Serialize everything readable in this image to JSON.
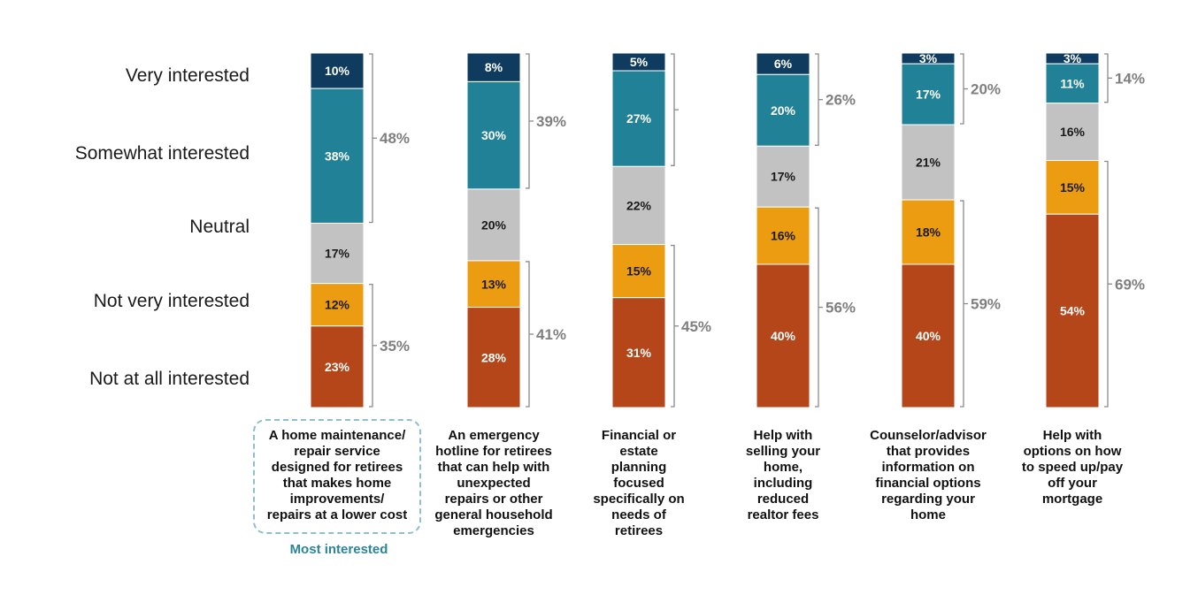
{
  "chart_data": {
    "type": "bar",
    "stacked": true,
    "legend_levels": [
      "Very interested",
      "Somewhat interested",
      "Neutral",
      "Not very interested",
      "Not at all interested"
    ],
    "colors": {
      "Very interested": "#0e3b5e",
      "Somewhat interested": "#218196",
      "Neutral": "#c2c2c2",
      "Not very interested": "#eb9c10",
      "Not at all interested": "#b4461a"
    },
    "categories": [
      "A home maintenance/\nrepair service\ndesigned for retirees\nthat makes home\nimprovements/\nrepairs at a lower cost",
      "An emergency\nhotline for retirees\nthat can help with\nunexpected\nrepairs or other\ngeneral household\nemergencies",
      "Financial or\nestate\nplanning\nfocused\nspecifically on\nneeds of\nretirees",
      "Help with\nselling your\nhome,\nincluding\nreduced\nrealtor fees",
      "Counselor/advisor\nthat provides\ninformation on\nfinancial options\nregarding your\nhome",
      "Help with\noptions on how\nto speed up/pay\noff your\nmortgage"
    ],
    "series": [
      {
        "name": "Very interested",
        "values": [
          10,
          8,
          5,
          6,
          3,
          3
        ]
      },
      {
        "name": "Somewhat interested",
        "values": [
          38,
          30,
          27,
          20,
          17,
          11
        ]
      },
      {
        "name": "Neutral",
        "values": [
          17,
          20,
          22,
          17,
          21,
          16
        ]
      },
      {
        "name": "Not very interested",
        "values": [
          12,
          13,
          15,
          16,
          18,
          15
        ]
      },
      {
        "name": "Not at all interested",
        "values": [
          23,
          28,
          31,
          40,
          40,
          54
        ]
      }
    ],
    "value_labels": [
      [
        "10%",
        "38%",
        "17%",
        "12%",
        "23%"
      ],
      [
        "8%",
        "30%",
        "20%",
        "13%",
        "28%"
      ],
      [
        "5%",
        "27%",
        "22%",
        "15%",
        "31%"
      ],
      [
        "6%",
        "20%",
        "17%",
        "16%",
        "40%"
      ],
      [
        "3%",
        "17%",
        "21%",
        "18%",
        "40%"
      ],
      [
        "3%",
        "11%",
        "16%",
        "15%",
        "54%"
      ]
    ],
    "top2_box": [
      "48%",
      "39%",
      "",
      "26%",
      "20%",
      "14%"
    ],
    "bottom2_box": [
      "35%",
      "41%",
      "45%",
      "56%",
      "59%",
      "69%"
    ]
  },
  "highlight": {
    "index": 0,
    "note": "Most interested",
    "note_color": "#2b8497",
    "box_color": "#8fbfcc"
  }
}
